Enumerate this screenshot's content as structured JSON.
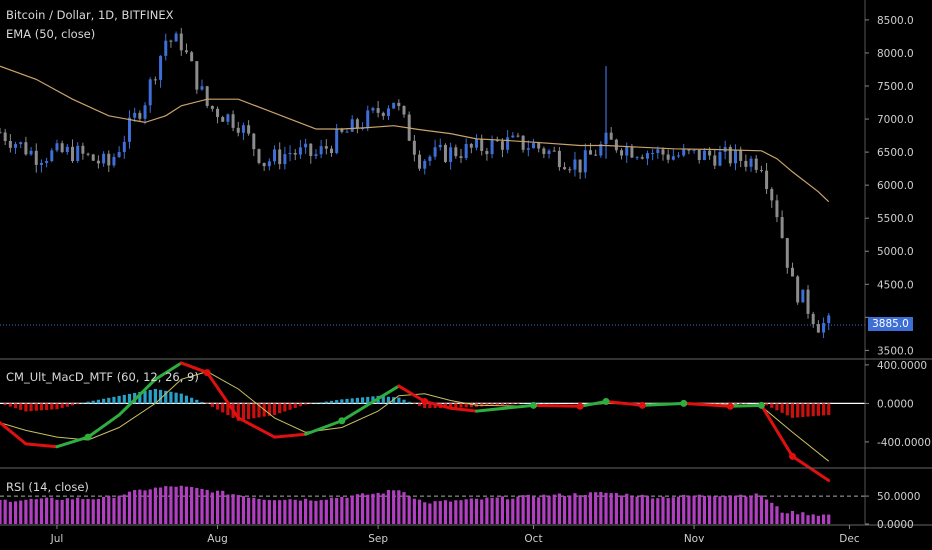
{
  "header": {
    "symbol_line": "Bitcoin / Dollar, 1D, BITFINEX",
    "ema_label": "EMA (50, close)",
    "macd_label": "CM_Ult_MacD_MTF (60, 12, 26, 9)",
    "rsi_label": "RSI (14, close)"
  },
  "last_price_label": "3885.0",
  "colors": {
    "up": "#3d6fd6",
    "down": "#8c8c8c",
    "ema": "#c9a36b",
    "macd_up": "#2fae3f",
    "macd_down": "#e01010",
    "signal": "#c8c060",
    "hist_pos": "#2aa0c8",
    "hist_neg": "#cc1010",
    "rsi": "#b040c0"
  },
  "chart_data": [
    {
      "type": "line",
      "title": "Bitcoin / Dollar, 1D, BITFINEX",
      "x": [
        "Jun 20",
        "Jun 27",
        "Jul 4",
        "Jul 11",
        "Jul 18",
        "Jul 22",
        "Jul 25",
        "Jul 30",
        "Aug 5",
        "Aug 10",
        "Aug 15",
        "Aug 20",
        "Aug 25",
        "Aug 30",
        "Sep 4",
        "Sep 9",
        "Sep 15",
        "Sep 20",
        "Sep 25",
        "Oct 1",
        "Oct 10",
        "Oct 15",
        "Oct 20",
        "Oct 28",
        "Nov 5",
        "Nov 14",
        "Nov 17",
        "Nov 20",
        "Nov 25",
        "Nov 27"
      ],
      "series": [
        {
          "name": "Close",
          "values": [
            6800,
            6450,
            6500,
            6300,
            7300,
            8200,
            8150,
            7200,
            6950,
            6350,
            6500,
            6450,
            6750,
            7000,
            7300,
            6400,
            6500,
            6550,
            6650,
            6600,
            6300,
            6650,
            6550,
            6450,
            6450,
            6350,
            5600,
            4500,
            3900,
            3885
          ]
        },
        {
          "name": "EMA (50, close)",
          "values": [
            7800,
            7600,
            7300,
            7050,
            6950,
            7050,
            7200,
            7300,
            7300,
            7150,
            7000,
            6850,
            6850,
            6870,
            6900,
            6840,
            6780,
            6700,
            6680,
            6650,
            6600,
            6600,
            6580,
            6550,
            6540,
            6520,
            6400,
            6200,
            5900,
            5750
          ]
        }
      ],
      "y_ticks": [
        8500,
        8000,
        7500,
        7000,
        6500,
        6000,
        5500,
        5000,
        4500,
        4000,
        3500
      ],
      "y_tick_labels": [
        "8500.0",
        "8000.0",
        "7500.0",
        "7000.0",
        "6500.0",
        "6000.0",
        "5500.0",
        "5000.0",
        "4500.0",
        "",
        "3500.0"
      ],
      "ylim": [
        3400,
        8650
      ],
      "x_tick_labels": [
        "Jul",
        "Aug",
        "Sep",
        "Oct",
        "Nov",
        "Dec"
      ],
      "x_tick_dates": [
        "Jul 1",
        "Aug 1",
        "Sep 1",
        "Oct 1",
        "Nov 1",
        "Dec 1"
      ],
      "spikes": [
        {
          "x": "Oct 15",
          "high": 7800
        }
      ]
    },
    {
      "type": "line",
      "title": "CM_Ult_MacD_MTF (60, 12, 26, 9)",
      "x": [
        "Jun 20",
        "Jun 25",
        "Jul 1",
        "Jul 7",
        "Jul 13",
        "Jul 20",
        "Jul 25",
        "Jul 30",
        "Aug 5",
        "Aug 12",
        "Aug 18",
        "Aug 25",
        "Sep 1",
        "Sep 5",
        "Sep 10",
        "Sep 15",
        "Sep 20",
        "Oct 1",
        "Oct 10",
        "Oct 15",
        "Oct 22",
        "Oct 30",
        "Nov 8",
        "Nov 14",
        "Nov 20",
        "Nov 27"
      ],
      "series": [
        {
          "name": "MacD",
          "values": [
            -200,
            -420,
            -450,
            -350,
            -120,
            250,
            420,
            320,
            -150,
            -350,
            -320,
            -180,
            50,
            180,
            20,
            -50,
            -80,
            -20,
            -30,
            20,
            -20,
            0,
            -30,
            -20,
            -550,
            -800
          ]
        },
        {
          "name": "Signal",
          "values": [
            -200,
            -280,
            -350,
            -380,
            -250,
            0,
            250,
            330,
            150,
            -150,
            -300,
            -250,
            -80,
            80,
            100,
            30,
            -20,
            -30,
            -25,
            0,
            -10,
            -5,
            -10,
            -30,
            -300,
            -600
          ]
        }
      ],
      "y_tick_labels": [
        "400.0000",
        "0.0000",
        "-400.0000"
      ],
      "y_ticks": [
        400,
        0,
        -400
      ],
      "ylim": [
        -650,
        430
      ]
    },
    {
      "type": "bar",
      "title": "RSI (14, close)",
      "y_tick_labels": [
        "50.0000",
        "0.0000"
      ],
      "y_ticks": [
        50,
        0
      ],
      "ylim": [
        0,
        95
      ],
      "x": [
        "Jun 20",
        "Jul 1",
        "Jul 10",
        "Jul 18",
        "Jul 24",
        "Aug 1",
        "Aug 10",
        "Aug 20",
        "Sep 1",
        "Sep 5",
        "Sep 10",
        "Sep 20",
        "Oct 1",
        "Oct 15",
        "Oct 25",
        "Nov 5",
        "Nov 14",
        "Nov 18",
        "Nov 25",
        "Nov 27"
      ],
      "values": [
        42,
        45,
        46,
        62,
        68,
        58,
        45,
        44,
        55,
        62,
        38,
        44,
        50,
        56,
        48,
        52,
        52,
        22,
        17,
        16
      ]
    }
  ]
}
